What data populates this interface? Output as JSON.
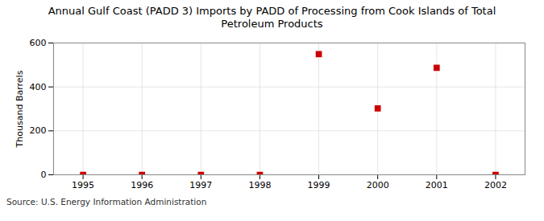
{
  "chart_data": {
    "type": "scatter",
    "title": "Annual Gulf Coast (PADD 3) Imports by PADD of Processing from Cook Islands of Total\nPetroleum Products",
    "ylabel": "Thousand Barrels",
    "source": "Source: U.S. Energy Information Administration",
    "x": [
      1995,
      1996,
      1997,
      1998,
      1999,
      2000,
      2001,
      2002
    ],
    "values": [
      0,
      0,
      0,
      0,
      549,
      302,
      487,
      0
    ],
    "color": "#cc0000",
    "marker": "square",
    "xlim": [
      1994.5,
      2002.5
    ],
    "xticks": [
      1995,
      1996,
      1997,
      1998,
      1999,
      2000,
      2001,
      2002
    ],
    "ylim": [
      0,
      600
    ],
    "yticks": [
      0,
      200,
      400,
      600
    ],
    "grid": true
  }
}
